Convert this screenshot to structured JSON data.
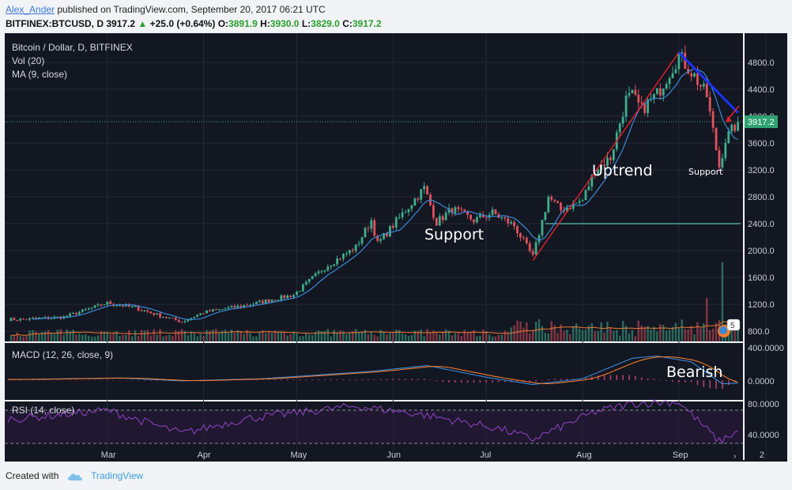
{
  "header": {
    "author": "Alex_Ander",
    "published_text": " published on TradingView.com, September 20, 2017 06:21 UTC",
    "symbol": "BITFINEX:BTCUSD, D",
    "last": "3917.2",
    "change": "+25.0 (+0.64%)",
    "open_label": "O:",
    "open": "3891.9",
    "high_label": "H:",
    "high": "3930.0",
    "low_label": "L:",
    "low": "3829.0",
    "close_label": "C:",
    "close": "3917.2"
  },
  "legend": {
    "title": "Bitcoin / Dollar, D, BITFINEX",
    "vol": "Vol (20)",
    "ma": "MA (9, close)",
    "macd": "MACD (12, 26, close, 9)",
    "rsi": "RSI (14, close)"
  },
  "annotations": {
    "uptrend": "Uptrend",
    "support_main": "Support",
    "support_small": "Support",
    "bearish": "Bearish",
    "price_tag": "3917.2",
    "events_badge": "5"
  },
  "footer": {
    "created_with": "Created with",
    "brand": "TradingView"
  },
  "colors": {
    "background": "#131722",
    "up": "#3fae8c",
    "down": "#e0525d",
    "ma": "#3a88d8",
    "macd_line": "#3a88d8",
    "signal_line": "#f07b2c",
    "rsi": "#8a3fbf",
    "trend_red": "#e8202a",
    "trend_blue": "#1a33ff",
    "support_line": "#4fa396",
    "price_tag": "#2ea270"
  },
  "chart_data": {
    "type": "candlestick",
    "title": "Bitcoin / Dollar, D, BITFINEX",
    "price_axis_ticks": [
      800,
      1200,
      1600,
      2000,
      2400,
      2800,
      3200,
      3600,
      4000,
      4400,
      4800
    ],
    "price_range": [
      530,
      5000
    ],
    "macd_axis_ticks": [
      "400.0000",
      "0.0000"
    ],
    "rsi_axis_ticks": [
      "80.0000",
      "40.0000"
    ],
    "rsi_bands": [
      70,
      30
    ],
    "x_labels": [
      "Mar",
      "Apr",
      "May",
      "Jun",
      "Jul",
      "Aug",
      "Sep",
      "2"
    ],
    "support_level": 2400,
    "last_price": 3917.2,
    "uptrend_line": {
      "from": [
        "2017-07-16",
        1850
      ],
      "to": [
        "2017-09-01",
        4950
      ]
    },
    "downtrend_line": {
      "from": [
        "2017-09-01",
        4950
      ],
      "to": [
        "2017-09-20",
        4050
      ]
    },
    "price_anchors": [
      [
        "2017-02-01",
        975
      ],
      [
        "2017-02-15",
        1010
      ],
      [
        "2017-03-01",
        1220
      ],
      [
        "2017-03-10",
        1150
      ],
      [
        "2017-03-18",
        1030
      ],
      [
        "2017-03-25",
        940
      ],
      [
        "2017-04-01",
        1080
      ],
      [
        "2017-04-15",
        1190
      ],
      [
        "2017-04-30",
        1340
      ],
      [
        "2017-05-10",
        1750
      ],
      [
        "2017-05-20",
        2050
      ],
      [
        "2017-05-25",
        2450
      ],
      [
        "2017-05-27",
        2100
      ],
      [
        "2017-06-05",
        2600
      ],
      [
        "2017-06-11",
        2930
      ],
      [
        "2017-06-15",
        2420
      ],
      [
        "2017-06-20",
        2620
      ],
      [
        "2017-06-27",
        2450
      ],
      [
        "2017-07-03",
        2560
      ],
      [
        "2017-07-10",
        2370
      ],
      [
        "2017-07-16",
        1900
      ],
      [
        "2017-07-21",
        2800
      ],
      [
        "2017-07-25",
        2600
      ],
      [
        "2017-08-01",
        2750
      ],
      [
        "2017-08-05",
        3200
      ],
      [
        "2017-08-10",
        3380
      ],
      [
        "2017-08-15",
        4250
      ],
      [
        "2017-08-17",
        4300
      ],
      [
        "2017-08-20",
        4100
      ],
      [
        "2017-08-25",
        4330
      ],
      [
        "2017-09-01",
        4900
      ],
      [
        "2017-09-06",
        4600
      ],
      [
        "2017-09-10",
        4300
      ],
      [
        "2017-09-14",
        3250
      ],
      [
        "2017-09-16",
        3650
      ],
      [
        "2017-09-20",
        3917
      ]
    ],
    "macd_anchors": [
      [
        "2017-02-01",
        10
      ],
      [
        "2017-03-05",
        30
      ],
      [
        "2017-03-25",
        -10
      ],
      [
        "2017-04-20",
        20
      ],
      [
        "2017-05-25",
        120
      ],
      [
        "2017-06-12",
        200
      ],
      [
        "2017-07-01",
        40
      ],
      [
        "2017-07-16",
        -60
      ],
      [
        "2017-08-01",
        20
      ],
      [
        "2017-08-17",
        300
      ],
      [
        "2017-08-25",
        330
      ],
      [
        "2017-09-05",
        250
      ],
      [
        "2017-09-15",
        -50
      ],
      [
        "2017-09-20",
        -40
      ]
    ],
    "rsi_anchors": [
      [
        "2017-02-01",
        60
      ],
      [
        "2017-03-01",
        70
      ],
      [
        "2017-03-25",
        42
      ],
      [
        "2017-04-15",
        60
      ],
      [
        "2017-05-20",
        75
      ],
      [
        "2017-06-10",
        65
      ],
      [
        "2017-07-05",
        48
      ],
      [
        "2017-07-16",
        35
      ],
      [
        "2017-08-05",
        68
      ],
      [
        "2017-08-17",
        78
      ],
      [
        "2017-09-01",
        80
      ],
      [
        "2017-09-14",
        32
      ],
      [
        "2017-09-20",
        45
      ]
    ]
  }
}
